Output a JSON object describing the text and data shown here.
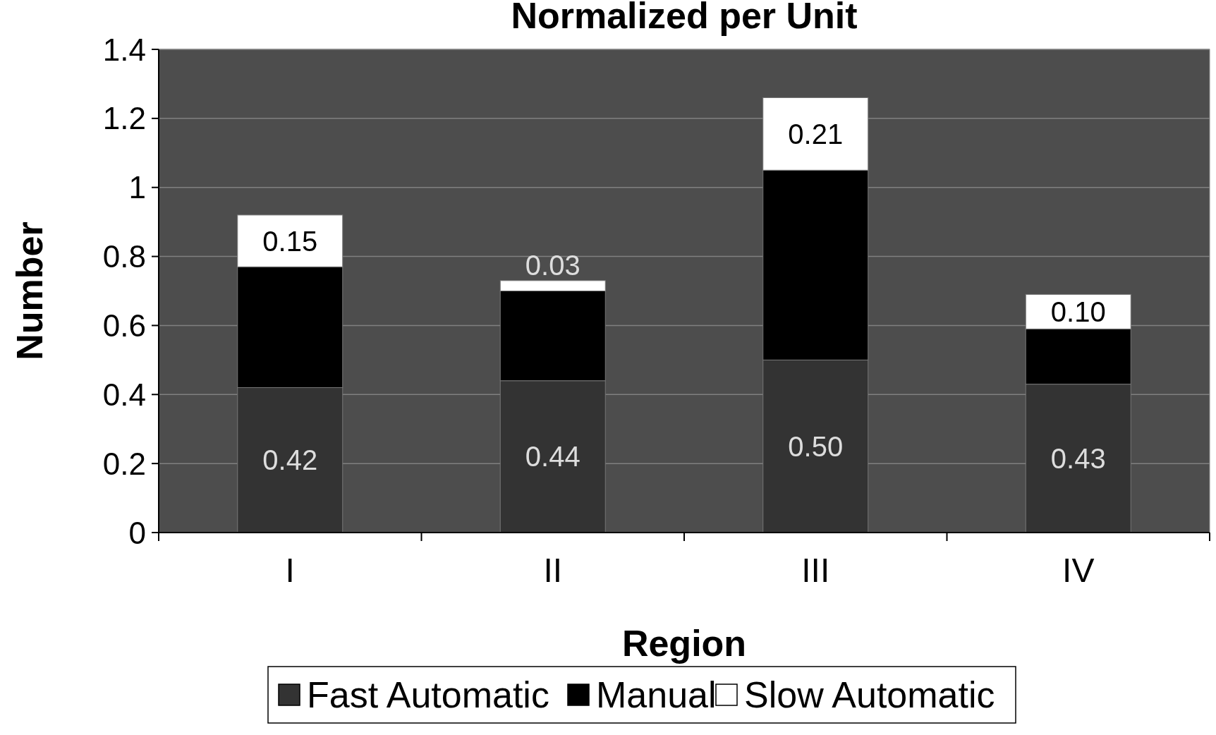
{
  "chart_data": {
    "type": "bar",
    "title": "Normalized per Unit",
    "xlabel": "Region",
    "ylabel": "Number",
    "categories": [
      "I",
      "II",
      "III",
      "IV"
    ],
    "stacked": true,
    "series": [
      {
        "name": "Fast Automatic",
        "color": "#333333",
        "values": [
          0.42,
          0.44,
          0.5,
          0.43
        ],
        "value_labels": [
          "0.42",
          "0.44",
          "0.50",
          "0.43"
        ]
      },
      {
        "name": "Manual",
        "color": "#000000",
        "values": [
          0.35,
          0.26,
          0.55,
          0.16
        ]
      },
      {
        "name": "Slow Automatic",
        "color": "#ffffff",
        "values": [
          0.15,
          0.03,
          0.21,
          0.1
        ],
        "value_labels": [
          "0.15",
          "0.03",
          "0.21",
          "0.10"
        ]
      }
    ],
    "ylim": [
      0,
      1.4
    ],
    "yticks": [
      0,
      0.2,
      0.4,
      0.6,
      0.8,
      1,
      1.2,
      1.4
    ],
    "grid": "y",
    "legend": "bottom"
  }
}
